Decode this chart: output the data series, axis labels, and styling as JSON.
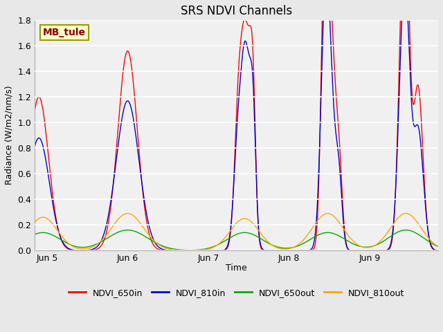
{
  "title": "SRS NDVI Channels",
  "xlabel": "Time",
  "ylabel": "Radiance (W/m2/nm/s)",
  "ylim": [
    0.0,
    1.8
  ],
  "yticks": [
    0.0,
    0.2,
    0.4,
    0.6,
    0.8,
    1.0,
    1.2,
    1.4,
    1.6,
    1.8
  ],
  "annotation_text": "MB_tule",
  "annotation_color": "#8B0000",
  "annotation_bg": "#FFFFCC",
  "colors": {
    "NDVI_650in": "#FF0000",
    "NDVI_810in": "#0000CC",
    "NDVI_650out": "#00AA00",
    "NDVI_810out": "#FFA500"
  },
  "legend_labels": [
    "NDVI_650in",
    "NDVI_810in",
    "NDVI_650out",
    "NDVI_810out"
  ],
  "bg_color": "#E8E8E8",
  "plot_bg": "#F0F0F0",
  "title_fontsize": 12,
  "label_fontsize": 9,
  "tick_fontsize": 9,
  "xticklabels": [
    "Jun 5",
    "Jun 6",
    "Jun 7",
    "Jun 8",
    "Jun 9"
  ],
  "xtick_positions": [
    0,
    1,
    2,
    3,
    4
  ],
  "xlim": [
    -0.15,
    4.85
  ]
}
